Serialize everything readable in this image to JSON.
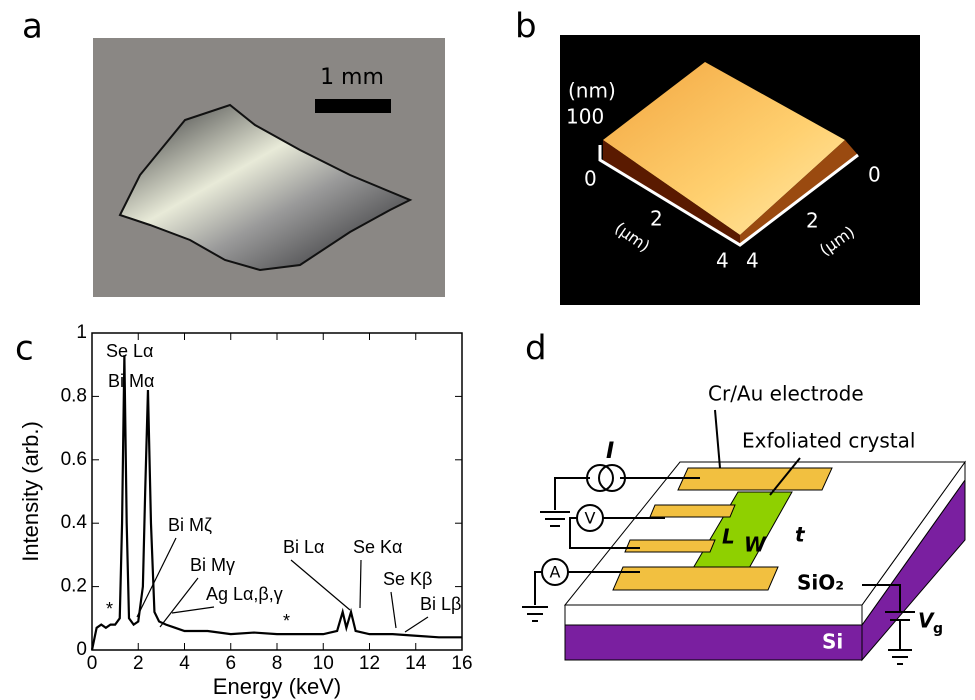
{
  "panel_labels": [
    "a",
    "b",
    "c",
    "d"
  ],
  "panel_a": {
    "scale_bar": "1 mm"
  },
  "panel_b": {
    "z_unit": "(nm)",
    "z_ticks": [
      "100",
      "0"
    ],
    "x_ticks": [
      "0",
      "2",
      "4"
    ],
    "y_ticks": [
      "0",
      "2",
      "4"
    ],
    "x_unit": "(μm)",
    "y_unit": "(μm)"
  },
  "chart_data": {
    "type": "line",
    "xlabel": "Energy (keV)",
    "ylabel": "Intensity (arb.)",
    "x": [
      0,
      0.2,
      0.4,
      0.6,
      0.8,
      1.0,
      1.2,
      1.3,
      1.4,
      1.5,
      1.6,
      1.8,
      2.0,
      2.2,
      2.3,
      2.42,
      2.55,
      2.7,
      2.9,
      3.2,
      3.6,
      4,
      5,
      6,
      7,
      8,
      9,
      10,
      10.6,
      10.84,
      11.0,
      11.2,
      11.4,
      12,
      13,
      14,
      15,
      16
    ],
    "values": [
      0,
      0.07,
      0.08,
      0.07,
      0.08,
      0.08,
      0.1,
      0.4,
      0.93,
      0.4,
      0.1,
      0.08,
      0.09,
      0.2,
      0.5,
      0.82,
      0.4,
      0.12,
      0.09,
      0.08,
      0.07,
      0.06,
      0.06,
      0.05,
      0.055,
      0.05,
      0.05,
      0.05,
      0.06,
      0.12,
      0.07,
      0.12,
      0.06,
      0.05,
      0.05,
      0.045,
      0.04,
      0.04
    ],
    "color": "#000000",
    "xlim": [
      0,
      16
    ],
    "ylim": [
      0,
      1
    ],
    "xticks": [
      0,
      2,
      4,
      6,
      8,
      10,
      12,
      14,
      16
    ],
    "yticks": [
      0,
      0.2,
      0.4,
      0.6,
      0.8,
      1
    ],
    "annotations": [
      "Se Lα",
      "Bi Mα",
      "Bi Mζ",
      "Bi Mγ",
      "Ag Lα,β,γ",
      "Bi Lα",
      "Se Kα",
      "Se Kβ",
      "Bi Lβ",
      "*",
      "*"
    ]
  },
  "panel_d": {
    "electrode": "Cr/Au electrode",
    "crystal": "Exfoliated crystal",
    "current": "I",
    "voltmeter": "V",
    "ammeter": "A",
    "length": "L",
    "width": "W",
    "thickness": "t",
    "oxide": "SiO₂",
    "substrate": "Si",
    "gate": {
      "main": "V",
      "sub": "g"
    }
  }
}
